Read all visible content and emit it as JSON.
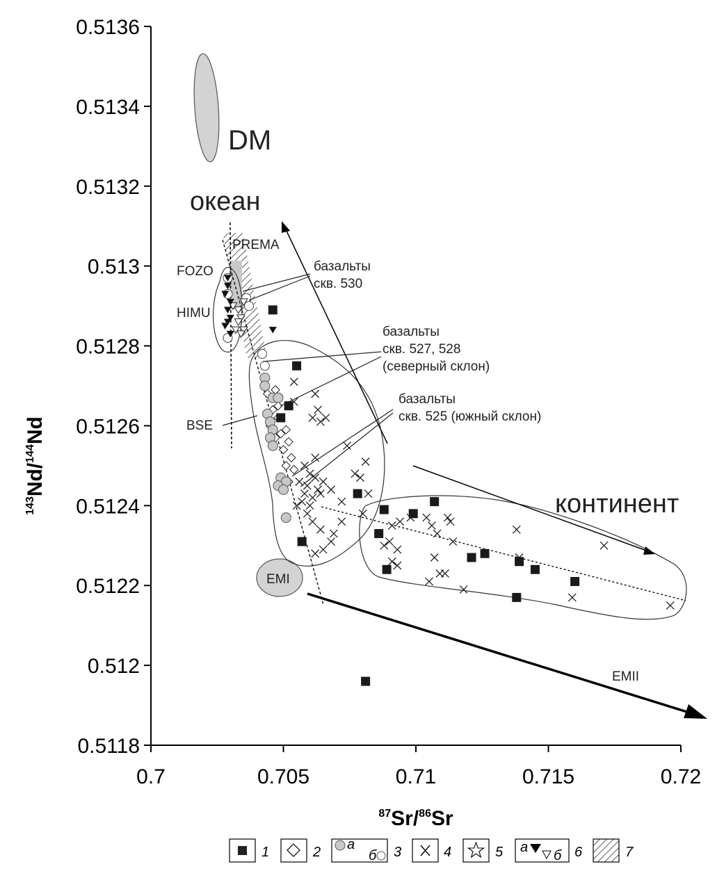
{
  "chart_data": {
    "type": "scatter",
    "xlabel": {
      "sup": "87",
      "main1": "Sr/",
      "sup2": "86",
      "main2": "Sr"
    },
    "ylabel": {
      "sup": "143",
      "main1": "Nd/",
      "sup2": "144",
      "main2": "Nd"
    },
    "xlim": [
      0.7,
      0.72
    ],
    "ylim": [
      0.5118,
      0.5136
    ],
    "x_ticks": [
      "0.7",
      "0.705",
      "0.71",
      "0.715",
      "0.72"
    ],
    "y_ticks": [
      "0.5118",
      "0.512",
      "0.5122",
      "0.5124",
      "0.5126",
      "0.5128",
      "0.513",
      "0.5132",
      "0.5134",
      "0.5136"
    ],
    "annotations": {
      "dm": "DM",
      "ocean": "океан",
      "continent": "континент",
      "prema": "PREMA",
      "fozo": "FOZO",
      "himu": "HIMU",
      "bse": "BSE",
      "emi": "EMI",
      "emii": "EMII",
      "basalt530_l1": "базальты",
      "basalt530_l2": "скв. 530",
      "basalt527_l1": "базальты",
      "basalt527_l2": "скв. 527, 528",
      "basalt527_l3": "(северный склон)",
      "basalt525_l1": "базальты",
      "basalt525_l2": "скв. 525 (южный склон)"
    },
    "legend": {
      "l1": "1",
      "l2": "2",
      "l3": "3",
      "l4": "4",
      "l5": "5",
      "l6": "6",
      "l7": "7",
      "l3a": "а",
      "l3b": "б",
      "l6a": "а",
      "l6b": "б"
    },
    "series": [
      {
        "symbol": "filled-square",
        "points": [
          [
            0.7046,
            0.51289
          ],
          [
            0.7055,
            0.51275
          ],
          [
            0.7052,
            0.51265
          ],
          [
            0.7049,
            0.51262
          ],
          [
            0.7078,
            0.51243
          ],
          [
            0.7057,
            0.51231
          ],
          [
            0.7088,
            0.51239
          ],
          [
            0.7086,
            0.51233
          ],
          [
            0.7089,
            0.51224
          ],
          [
            0.7099,
            0.51238
          ],
          [
            0.7107,
            0.51241
          ],
          [
            0.7121,
            0.51227
          ],
          [
            0.7126,
            0.51228
          ],
          [
            0.7138,
            0.51217
          ],
          [
            0.7139,
            0.51226
          ],
          [
            0.7145,
            0.51224
          ],
          [
            0.716,
            0.51221
          ],
          [
            0.7081,
            0.51196
          ]
        ]
      },
      {
        "symbol": "open-diamond",
        "points": [
          [
            0.7044,
            0.51268
          ],
          [
            0.7046,
            0.51264
          ],
          [
            0.7048,
            0.51262
          ],
          [
            0.7045,
            0.5126
          ],
          [
            0.7049,
            0.51258
          ],
          [
            0.7047,
            0.51257
          ],
          [
            0.7052,
            0.51256
          ],
          [
            0.705,
            0.51254
          ],
          [
            0.7053,
            0.51252
          ],
          [
            0.7051,
            0.5125
          ],
          [
            0.7054,
            0.51249
          ],
          [
            0.7049,
            0.51247
          ],
          [
            0.7052,
            0.51246
          ],
          [
            0.7048,
            0.51265
          ],
          [
            0.7047,
            0.51269
          ],
          [
            0.7051,
            0.51259
          ]
        ]
      },
      {
        "symbol": "grey-circle",
        "points": [
          [
            0.7043,
            0.51272
          ],
          [
            0.7043,
            0.5127
          ],
          [
            0.7046,
            0.51267
          ],
          [
            0.7048,
            0.51267
          ],
          [
            0.7044,
            0.51263
          ],
          [
            0.7045,
            0.51261
          ],
          [
            0.7046,
            0.51259
          ],
          [
            0.7045,
            0.51257
          ],
          [
            0.7046,
            0.51255
          ],
          [
            0.7049,
            0.51247
          ],
          [
            0.7051,
            0.51246
          ],
          [
            0.7048,
            0.51245
          ],
          [
            0.705,
            0.51244
          ],
          [
            0.7051,
            0.51237
          ]
        ]
      },
      {
        "symbol": "open-circle",
        "points": [
          [
            0.7042,
            0.51278
          ],
          [
            0.7043,
            0.51275
          ],
          [
            0.7036,
            0.51292
          ],
          [
            0.7037,
            0.5129
          ],
          [
            0.7029,
            0.51297
          ],
          [
            0.7029,
            0.51293
          ],
          [
            0.7029,
            0.51282
          ]
        ]
      },
      {
        "symbol": "cross",
        "points": [
          [
            0.7054,
            0.51271
          ],
          [
            0.7062,
            0.51268
          ],
          [
            0.7063,
            0.51264
          ],
          [
            0.7066,
            0.51262
          ],
          [
            0.7061,
            0.51262
          ],
          [
            0.7064,
            0.51261
          ],
          [
            0.7054,
            0.51266
          ],
          [
            0.7074,
            0.51255
          ],
          [
            0.7062,
            0.51252
          ],
          [
            0.7058,
            0.5125
          ],
          [
            0.706,
            0.51248
          ],
          [
            0.7062,
            0.51247
          ],
          [
            0.7065,
            0.51246
          ],
          [
            0.7056,
            0.51246
          ],
          [
            0.7059,
            0.51245
          ],
          [
            0.7063,
            0.51244
          ],
          [
            0.7058,
            0.51243
          ],
          [
            0.7061,
            0.51242
          ],
          [
            0.7057,
            0.51241
          ],
          [
            0.706,
            0.5124
          ],
          [
            0.7055,
            0.5124
          ],
          [
            0.7064,
            0.51243
          ],
          [
            0.7068,
            0.51244
          ],
          [
            0.7072,
            0.51241
          ],
          [
            0.7077,
            0.51248
          ],
          [
            0.7079,
            0.51247
          ],
          [
            0.7082,
            0.51243
          ],
          [
            0.7081,
            0.51251
          ],
          [
            0.708,
            0.51238
          ],
          [
            0.7072,
            0.51236
          ],
          [
            0.7069,
            0.51233
          ],
          [
            0.7064,
            0.51234
          ],
          [
            0.7061,
            0.51236
          ],
          [
            0.7059,
            0.51238
          ],
          [
            0.7062,
            0.51228
          ],
          [
            0.7068,
            0.51231
          ],
          [
            0.7065,
            0.51229
          ],
          [
            0.7091,
            0.51235
          ],
          [
            0.7094,
            0.51236
          ],
          [
            0.7098,
            0.51237
          ],
          [
            0.709,
            0.51231
          ],
          [
            0.7093,
            0.51229
          ],
          [
            0.7088,
            0.5123
          ],
          [
            0.7091,
            0.51226
          ],
          [
            0.7093,
            0.51225
          ],
          [
            0.7104,
            0.51237
          ],
          [
            0.7106,
            0.51235
          ],
          [
            0.7108,
            0.51233
          ],
          [
            0.7112,
            0.51237
          ],
          [
            0.7113,
            0.51236
          ],
          [
            0.7114,
            0.51231
          ],
          [
            0.7107,
            0.51227
          ],
          [
            0.7109,
            0.51223
          ],
          [
            0.7111,
            0.51223
          ],
          [
            0.7105,
            0.51221
          ],
          [
            0.7118,
            0.51219
          ],
          [
            0.7138,
            0.51234
          ],
          [
            0.7139,
            0.51227
          ],
          [
            0.7159,
            0.51217
          ],
          [
            0.7171,
            0.5123
          ],
          [
            0.7196,
            0.51215
          ]
        ]
      },
      {
        "symbol": "filled-triangle",
        "points": [
          [
            0.7029,
            0.51297
          ],
          [
            0.7029,
            0.51295
          ],
          [
            0.7028,
            0.51293
          ],
          [
            0.703,
            0.51291
          ],
          [
            0.7029,
            0.51289
          ],
          [
            0.703,
            0.51287
          ],
          [
            0.7029,
            0.51286
          ],
          [
            0.7028,
            0.51285
          ],
          [
            0.703,
            0.51283
          ],
          [
            0.7046,
            0.51284
          ]
        ]
      },
      {
        "symbol": "open-triangle",
        "points": [
          [
            0.7035,
            0.51291
          ],
          [
            0.7033,
            0.51289
          ],
          [
            0.7034,
            0.51287
          ],
          [
            0.7033,
            0.51286
          ],
          [
            0.7035,
            0.51284
          ],
          [
            0.7032,
            0.51284
          ],
          [
            0.7034,
            0.51283
          ],
          [
            0.7031,
            0.5129
          ]
        ]
      }
    ]
  }
}
